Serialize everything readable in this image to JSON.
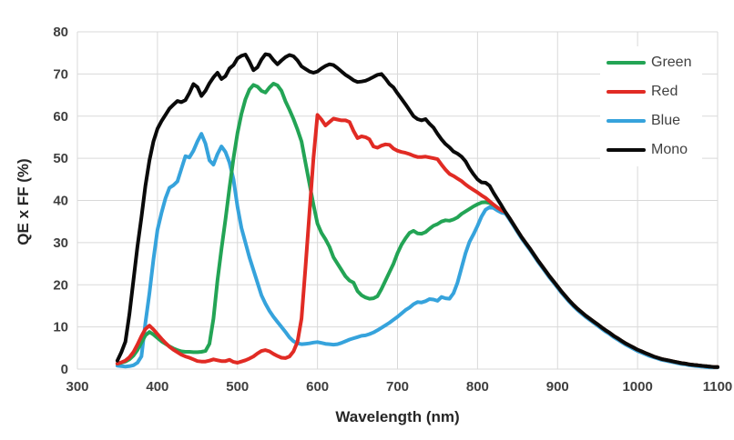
{
  "chart_data": {
    "type": "line",
    "title": "",
    "xlabel": "Wavelength (nm)",
    "ylabel": "QE x FF (%)",
    "xlim": [
      300,
      1100
    ],
    "ylim": [
      0,
      80
    ],
    "xticks": [
      300,
      400,
      500,
      600,
      700,
      800,
      900,
      1000,
      1100
    ],
    "yticks": [
      0,
      10,
      20,
      30,
      40,
      50,
      60,
      70,
      80
    ],
    "grid": true,
    "legend_position": "upper-right-inside",
    "x_start": 350,
    "x_step": 5,
    "x_end": 1100,
    "line_width": 4,
    "draw_order": [
      "Blue",
      "Green",
      "Red",
      "Mono"
    ],
    "series": [
      {
        "name": "Green",
        "color": "#23A455",
        "values": [
          1.3,
          1.5,
          1.8,
          2.3,
          3.2,
          4.5,
          6.3,
          8,
          8.8,
          8.2,
          7.4,
          6.6,
          6,
          5.4,
          4.9,
          4.5,
          4.2,
          4.1,
          4.1,
          4,
          4,
          4.1,
          4.3,
          6,
          12,
          21,
          28.5,
          35.5,
          43,
          50,
          56,
          60.5,
          64,
          66.3,
          67.4,
          67,
          66,
          65.6,
          66.8,
          67.7,
          67.3,
          66,
          63.5,
          61.5,
          59.3,
          56.8,
          54,
          49,
          44,
          39,
          34.5,
          32.3,
          30.8,
          29,
          26.5,
          25,
          23.5,
          22,
          21,
          20.5,
          18.5,
          17.5,
          17,
          16.7,
          16.8,
          17.3,
          19,
          21,
          23,
          25,
          27.5,
          29.5,
          31,
          32.3,
          32.8,
          32.2,
          32.1,
          32.5,
          33.3,
          34,
          34.4,
          35,
          35.3,
          35.2,
          35.5,
          36,
          36.8,
          37.4,
          38,
          38.6,
          39.1,
          39.5,
          39.6,
          39.4,
          38.9,
          38.3,
          37.7,
          37.2,
          35.8,
          34.3,
          32.8,
          31.3,
          30,
          28.7,
          27.3,
          25.9,
          24.6,
          23.3,
          22,
          20.8,
          19.6,
          18.4,
          17.3,
          16.2,
          15.2,
          14.3,
          13.5,
          12.7,
          12,
          11.3,
          10.6,
          9.9,
          9.2,
          8.6,
          7.9,
          7.3,
          6.7,
          6.1,
          5.6,
          5.1,
          4.6,
          4.2,
          3.8,
          3.4,
          3,
          2.7,
          2.4,
          2.2,
          2,
          1.8,
          1.6,
          1.4,
          1.3,
          1.1,
          1,
          0.9,
          0.8,
          0.7,
          0.6,
          0.5,
          0.5
        ]
      },
      {
        "name": "Red",
        "color": "#E12B24",
        "values": [
          1.3,
          1.6,
          2,
          2.8,
          4,
          5.8,
          7.8,
          9.5,
          10.3,
          9.4,
          8.3,
          7.2,
          6.2,
          5.3,
          4.6,
          4,
          3.4,
          3,
          2.7,
          2.3,
          1.9,
          1.8,
          1.8,
          2,
          2.3,
          2.1,
          1.9,
          1.9,
          2.2,
          1.7,
          1.5,
          1.8,
          2.1,
          2.5,
          3,
          3.7,
          4.3,
          4.5,
          4.2,
          3.6,
          3.1,
          2.7,
          2.6,
          3,
          4.2,
          6.5,
          12,
          24,
          37,
          50,
          60.3,
          59.2,
          57.8,
          58.6,
          59.4,
          59.2,
          59,
          59,
          58.6,
          56.5,
          54.8,
          55.2,
          55,
          54.5,
          52.8,
          52.5,
          53,
          53.3,
          53.2,
          52.3,
          51.8,
          51.5,
          51.3,
          51,
          50.6,
          50.3,
          50.3,
          50.4,
          50.2,
          50,
          49.8,
          48.5,
          47.3,
          46.3,
          45.8,
          45.2,
          44.6,
          43.8,
          43.1,
          42.5,
          41.9,
          41.2,
          40.6,
          39.8,
          39,
          38.3,
          37.7,
          37.2,
          35.8,
          34.3,
          32.8,
          31.3,
          30,
          28.7,
          27.3,
          25.9,
          24.6,
          23.3,
          22,
          20.8,
          19.6,
          18.4,
          17.3,
          16.2,
          15.2,
          14.3,
          13.5,
          12.7,
          12,
          11.3,
          10.6,
          9.9,
          9.2,
          8.6,
          7.9,
          7.3,
          6.7,
          6.1,
          5.6,
          5.1,
          4.6,
          4.2,
          3.8,
          3.4,
          3,
          2.7,
          2.4,
          2.2,
          2,
          1.8,
          1.6,
          1.4,
          1.3,
          1.1,
          1,
          0.9,
          0.8,
          0.7,
          0.6,
          0.5,
          0.5
        ]
      },
      {
        "name": "Blue",
        "color": "#36A3DC",
        "values": [
          0.8,
          0.7,
          0.6,
          0.7,
          0.9,
          1.5,
          3,
          11,
          18,
          26,
          33,
          37,
          40.5,
          43,
          43.6,
          44.5,
          47.5,
          50.5,
          50.2,
          51.8,
          54,
          55.8,
          53.5,
          49.5,
          48.5,
          51,
          52.8,
          51.5,
          49,
          45,
          38.5,
          33.5,
          30,
          26.5,
          23.5,
          20.5,
          17.5,
          15.5,
          13.8,
          12.4,
          11.2,
          10,
          8.8,
          7.5,
          6.6,
          6.1,
          5.9,
          6,
          6.1,
          6.3,
          6.4,
          6.2,
          6,
          5.9,
          5.8,
          5.9,
          6.2,
          6.6,
          7,
          7.3,
          7.6,
          7.9,
          8,
          8.3,
          8.7,
          9.2,
          9.8,
          10.4,
          11,
          11.7,
          12.4,
          13.2,
          14,
          14.6,
          15.4,
          15.9,
          15.8,
          16.1,
          16.6,
          16.5,
          16.2,
          17.1,
          16.8,
          16.7,
          18,
          20.5,
          24,
          27.5,
          30.2,
          32,
          34,
          36.2,
          37.8,
          38.4,
          38.2,
          37.6,
          37.1,
          36.9,
          35.5,
          34,
          32.5,
          31,
          29.7,
          28.4,
          27,
          25.6,
          24.3,
          23,
          21.7,
          20.5,
          19.3,
          18.1,
          17,
          15.9,
          14.9,
          14,
          13.2,
          12.4,
          11.7,
          11,
          10.3,
          9.6,
          8.9,
          8.3,
          7.6,
          7,
          6.4,
          5.8,
          5.3,
          4.8,
          4.3,
          3.9,
          3.5,
          3.1,
          2.8,
          2.5,
          2.2,
          2,
          1.8,
          1.6,
          1.4,
          1.2,
          1.1,
          0.9,
          0.8,
          0.7,
          0.6,
          0.5,
          0.4,
          0.4,
          0.4
        ]
      },
      {
        "name": "Mono",
        "color": "#0A0A0A",
        "values": [
          2,
          4,
          6.5,
          13,
          21,
          29,
          36,
          43.5,
          49.5,
          54,
          57,
          58.8,
          60.3,
          61.8,
          62.7,
          63.6,
          63.3,
          63.8,
          65.5,
          67.6,
          66.9,
          64.8,
          66,
          67.8,
          69.2,
          70.3,
          68.8,
          69.5,
          71.3,
          72.1,
          73.7,
          74.3,
          74.6,
          72.9,
          70.9,
          71.6,
          73.4,
          74.7,
          74.5,
          73.3,
          72.3,
          73.2,
          74,
          74.5,
          74.2,
          73.2,
          71.8,
          71.2,
          70.6,
          70.3,
          70.6,
          71.3,
          71.9,
          72.3,
          72.1,
          71.4,
          70.6,
          69.8,
          69.2,
          68.5,
          68.1,
          68.2,
          68.4,
          68.8,
          69.3,
          69.8,
          70,
          68.9,
          67.6,
          66.8,
          65.4,
          64.1,
          62.8,
          61.4,
          60,
          59.3,
          59,
          59.3,
          58.2,
          57.3,
          55.8,
          54.5,
          53.4,
          52.6,
          51.6,
          51.1,
          50.4,
          49.3,
          47.6,
          46.2,
          45,
          44.3,
          44.2,
          43.5,
          41.8,
          40.3,
          38.8,
          37.2,
          35.8,
          34.3,
          32.8,
          31.3,
          30,
          28.7,
          27.3,
          25.9,
          24.6,
          23.3,
          22,
          20.8,
          19.6,
          18.4,
          17.3,
          16.2,
          15.2,
          14.3,
          13.5,
          12.7,
          12,
          11.3,
          10.6,
          9.9,
          9.2,
          8.6,
          7.9,
          7.3,
          6.7,
          6.1,
          5.6,
          5.1,
          4.6,
          4.2,
          3.8,
          3.4,
          3,
          2.7,
          2.4,
          2.2,
          2,
          1.8,
          1.6,
          1.4,
          1.3,
          1.1,
          1,
          0.9,
          0.8,
          0.7,
          0.6,
          0.5,
          0.5
        ]
      }
    ],
    "colors": {
      "background": "#ffffff",
      "grid": "#d9d9d9",
      "tick_label": "#3f3f3f",
      "axis_title": "#262626",
      "legend_label": "#404040"
    }
  }
}
